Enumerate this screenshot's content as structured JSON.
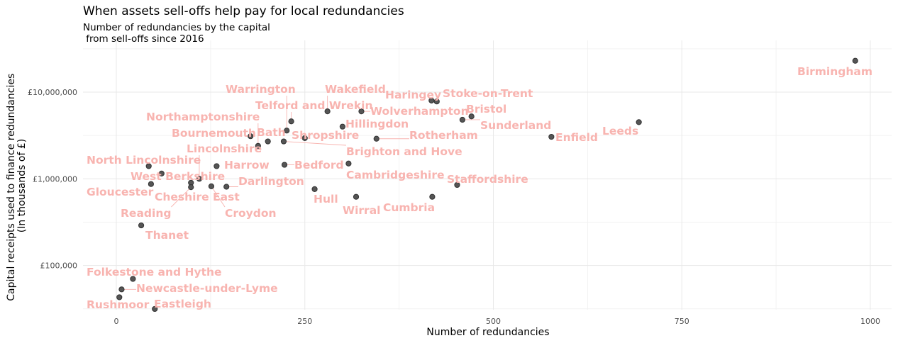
{
  "title": "When assets sell-offs help pay for local redundancies",
  "subtitle": "Number of redundancies by the capital\n from sell-offs since 2016",
  "chart_data": {
    "type": "scatter",
    "title": "When assets sell-offs help pay for local redundancies",
    "subtitle": "Number of redundancies by the capital\n from sell-offs since 2016",
    "xlabel": "Number of redundancies",
    "ylabel": "Capital receipts used to finance redundancies\n(In thousands of £)",
    "x_ticks": [
      0,
      250,
      500,
      750,
      1000
    ],
    "x_tick_labels": [
      "0",
      "250",
      "500",
      "750",
      "1000"
    ],
    "y_scale": "log10",
    "y_ticks": [
      100000,
      1000000,
      10000000
    ],
    "y_tick_labels": [
      "£100,000",
      "£1,000,000",
      "£10,000,000"
    ],
    "xlim": [
      -45,
      1025
    ],
    "ylim": [
      30000,
      30000000
    ],
    "grid": true,
    "legend": "none",
    "point_color": "#555555",
    "label_color": "#f8b4b0",
    "points": [
      {
        "name": "Birmingham",
        "x": 980,
        "y": 23000000
      },
      {
        "name": "Leeds",
        "x": 693,
        "y": 4500000
      },
      {
        "name": "Enfield",
        "x": 577,
        "y": 3050000
      },
      {
        "name": "Bristol",
        "x": 471,
        "y": 5250000
      },
      {
        "name": "Sunderland",
        "x": 459,
        "y": 4800000
      },
      {
        "name": "Stoke-on-Trent",
        "x": 425,
        "y": 7800000
      },
      {
        "name": "Haringey",
        "x": 418,
        "y": 8000000
      },
      {
        "name": "Staffordshire",
        "x": 452,
        "y": 850000
      },
      {
        "name": "Cumbria",
        "x": 419,
        "y": 620000
      },
      {
        "name": "Wolverhampton",
        "x": 325,
        "y": 6000000
      },
      {
        "name": "Wakefield",
        "x": 280,
        "y": 6000000
      },
      {
        "name": "Rotherham",
        "x": 345,
        "y": 2900000
      },
      {
        "name": "Hillingdon",
        "x": 300,
        "y": 4000000
      },
      {
        "name": "Cambridgeshire",
        "x": 308,
        "y": 1500000
      },
      {
        "name": "Wirral",
        "x": 318,
        "y": 620000
      },
      {
        "name": "Hull",
        "x": 263,
        "y": 760000
      },
      {
        "name": "Telford and Wrekin",
        "x": 232,
        "y": 4600000
      },
      {
        "name": "Warrington",
        "x": 226,
        "y": 3600000
      },
      {
        "name": "Shropshire",
        "x": 250,
        "y": 2950000
      },
      {
        "name": "Brighton and Hove",
        "x": 222,
        "y": 2700000
      },
      {
        "name": "Bedford",
        "x": 223,
        "y": 1450000
      },
      {
        "name": "Bath",
        "x": 201,
        "y": 2700000
      },
      {
        "name": "Bournemouth",
        "x": 178,
        "y": 3100000
      },
      {
        "name": "Northamptonshire",
        "x": 188,
        "y": 2400000
      },
      {
        "name": "Harrow",
        "x": 133,
        "y": 1400000
      },
      {
        "name": "Darlington",
        "x": 146,
        "y": 810000
      },
      {
        "name": "Croydon",
        "x": 126,
        "y": 820000
      },
      {
        "name": "Lincolnshire",
        "x": 110,
        "y": 1000000
      },
      {
        "name": "Cheshire East",
        "x": 99,
        "y": 900000
      },
      {
        "name": "Reading",
        "x": 99,
        "y": 800000
      },
      {
        "name": "Gloucester",
        "x": 46,
        "y": 870000
      },
      {
        "name": "West Berkshire",
        "x": 60,
        "y": 1150000
      },
      {
        "name": "North Lincolnshire",
        "x": 43,
        "y": 1400000
      },
      {
        "name": "Thanet",
        "x": 33,
        "y": 290000
      },
      {
        "name": "Folkestone and Hythe",
        "x": 22,
        "y": 70000
      },
      {
        "name": "Newcastle-under-Lyme",
        "x": 7,
        "y": 53000
      },
      {
        "name": "Rushmoor",
        "x": 4,
        "y": 43000
      },
      {
        "name": "Eastleigh",
        "x": 51,
        "y": 31500
      }
    ]
  }
}
